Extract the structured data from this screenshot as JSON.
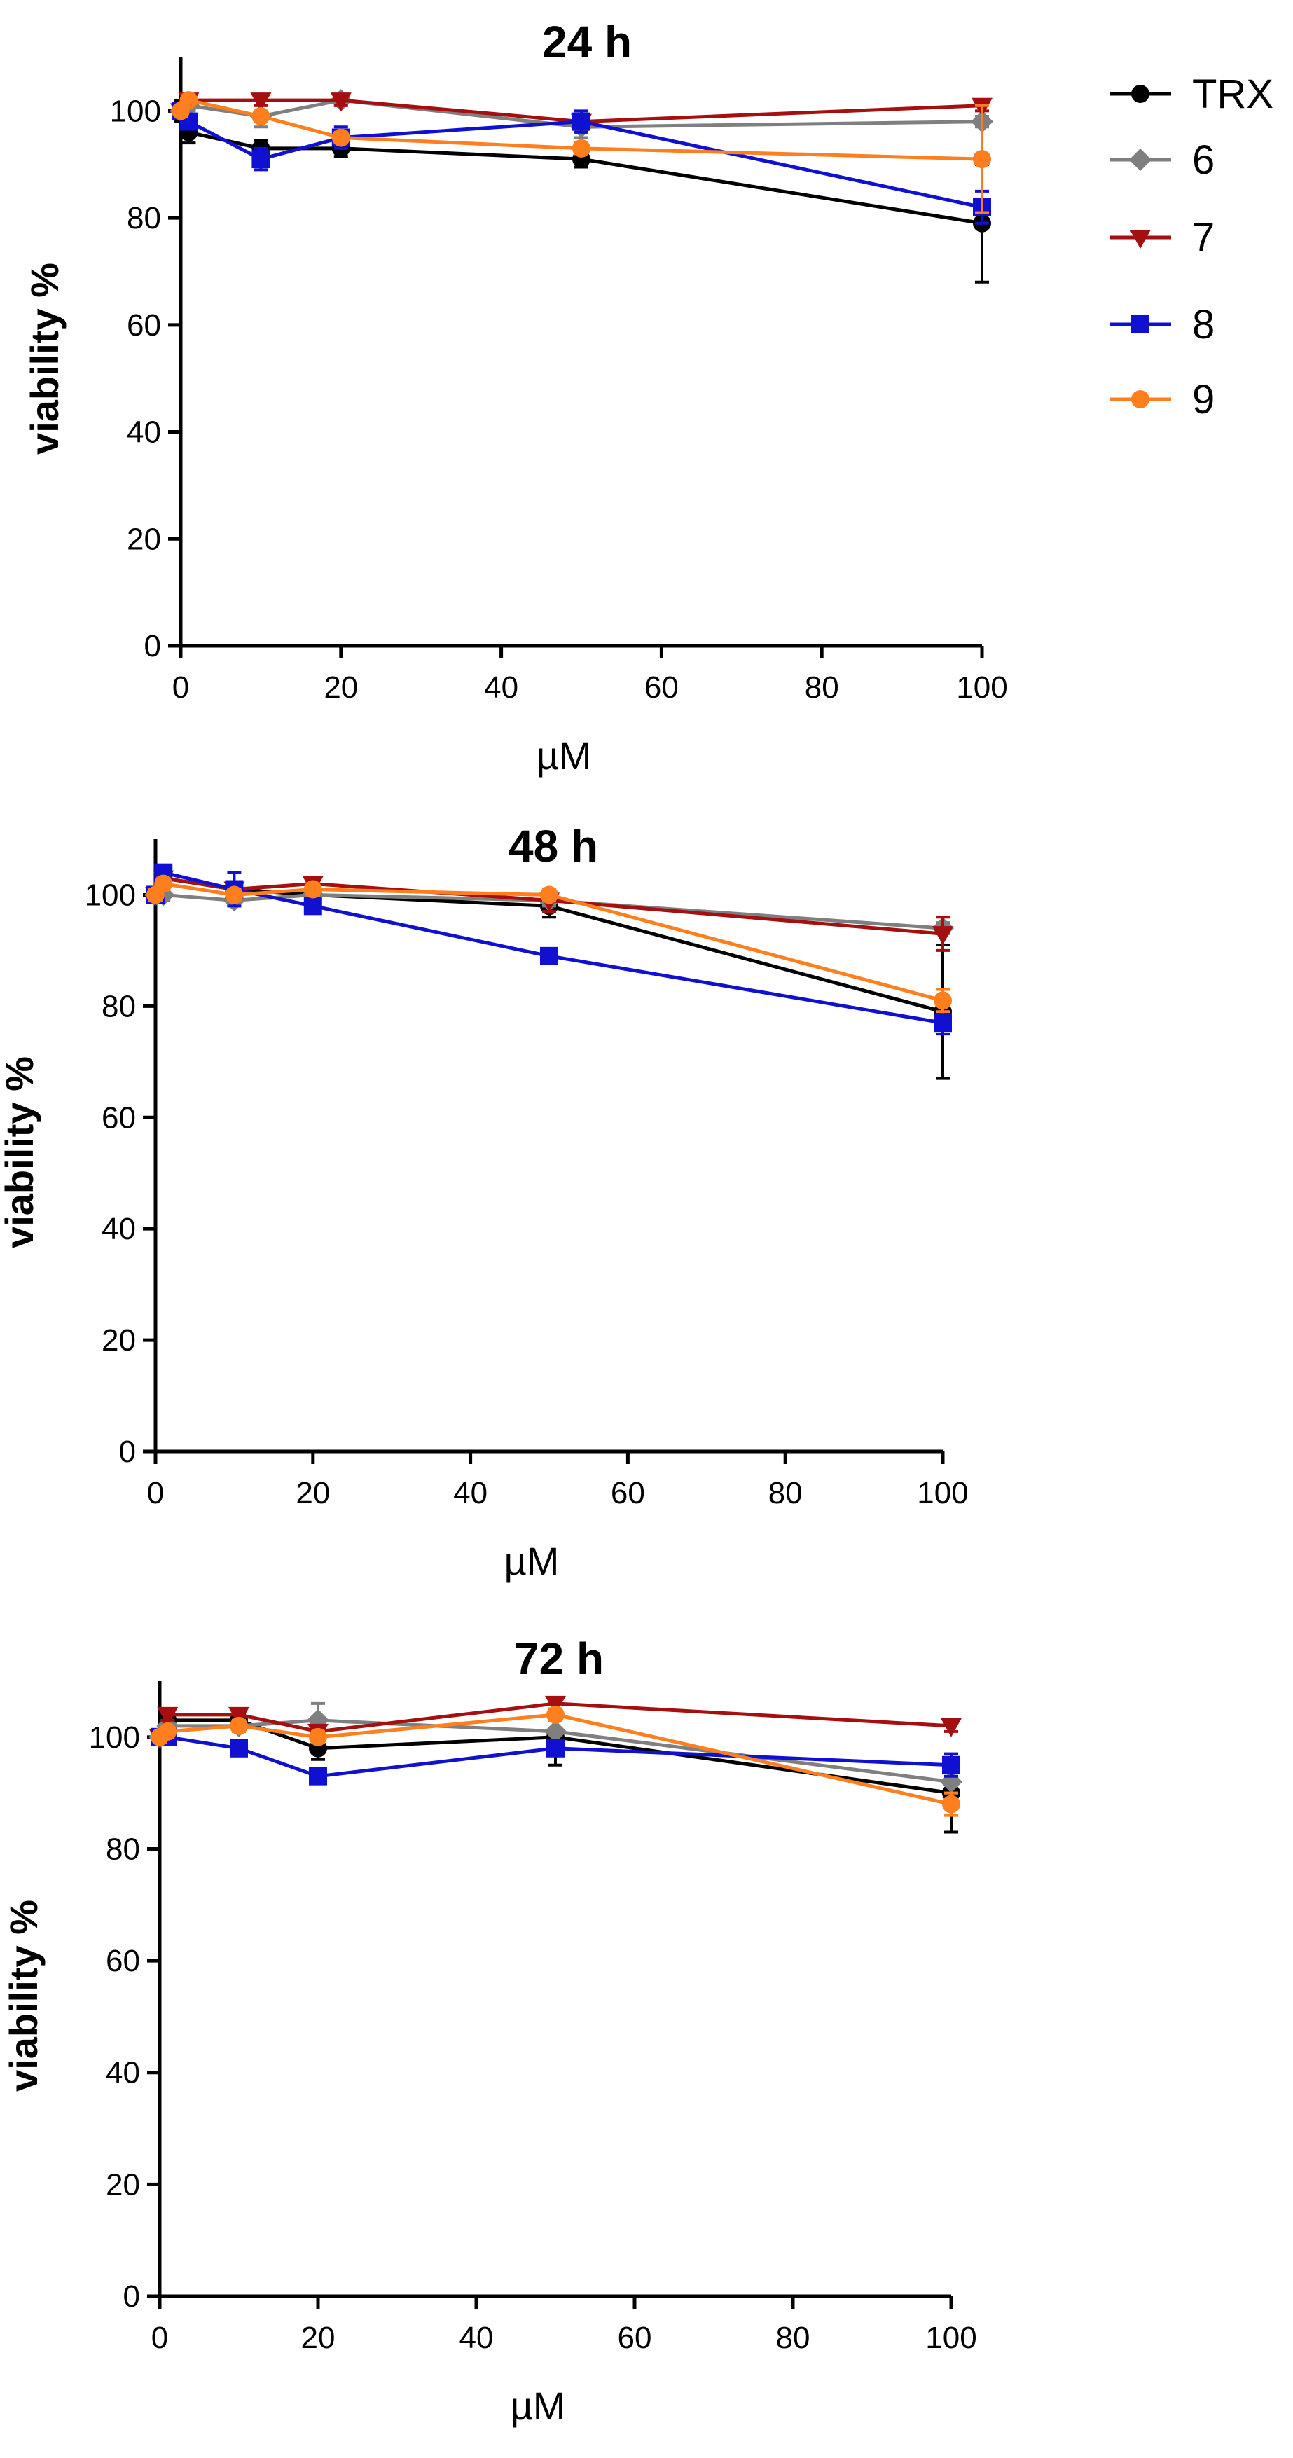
{
  "series_meta": [
    {
      "key": "TRX",
      "name": "TRX",
      "color": "#000000",
      "marker": "circle"
    },
    {
      "key": "6",
      "name": "6",
      "color": "#7f7f7f",
      "marker": "diamond"
    },
    {
      "key": "7",
      "name": "7",
      "color": "#a50f0f",
      "marker": "triangle-down"
    },
    {
      "key": "8",
      "name": "8",
      "color": "#1010d0",
      "marker": "square"
    },
    {
      "key": "9",
      "name": "9",
      "color": "#ff7f1e",
      "marker": "circle"
    }
  ],
  "chart_data": [
    {
      "type": "line",
      "title": "24 h",
      "xlabel": "µM",
      "ylabel": "viability %",
      "xlim": [
        0,
        100
      ],
      "ylim": [
        0,
        110
      ],
      "xticks": [
        0,
        20,
        40,
        60,
        80,
        100
      ],
      "yticks": [
        0,
        20,
        40,
        60,
        80,
        100
      ],
      "x": [
        0,
        1,
        10,
        20,
        50,
        100
      ],
      "series": [
        {
          "name": "TRX",
          "values": [
            100,
            96,
            93,
            93,
            91,
            79
          ],
          "errors": [
            2,
            2,
            1.5,
            1.5,
            1.5,
            11
          ]
        },
        {
          "name": "6",
          "values": [
            100,
            101,
            99,
            102,
            97,
            98
          ],
          "errors": [
            1,
            1,
            2,
            1,
            2,
            1
          ]
        },
        {
          "name": "7",
          "values": [
            100,
            102,
            102,
            102,
            98,
            101
          ],
          "errors": [
            1,
            1,
            1,
            1,
            1,
            1
          ]
        },
        {
          "name": "8",
          "values": [
            100,
            98,
            91,
            95,
            98,
            82
          ],
          "errors": [
            1,
            1,
            2,
            2,
            2,
            3
          ]
        },
        {
          "name": "9",
          "values": [
            100,
            102,
            99,
            95,
            93,
            91
          ],
          "errors": [
            1,
            1,
            1,
            1,
            1,
            10
          ]
        }
      ]
    },
    {
      "type": "line",
      "title": "48 h",
      "xlabel": "µM",
      "ylabel": "viability %",
      "xlim": [
        0,
        100
      ],
      "ylim": [
        0,
        110
      ],
      "xticks": [
        0,
        20,
        40,
        60,
        80,
        100
      ],
      "yticks": [
        0,
        20,
        40,
        60,
        80,
        100
      ],
      "x": [
        0,
        1,
        10,
        20,
        50,
        100
      ],
      "series": [
        {
          "name": "TRX",
          "values": [
            100,
            103,
            101,
            100,
            98,
            79
          ],
          "errors": [
            1,
            1,
            1,
            1,
            2,
            12
          ]
        },
        {
          "name": "6",
          "values": [
            100,
            100,
            99,
            100,
            99,
            94
          ],
          "errors": [
            1,
            1,
            1,
            1,
            1,
            1
          ]
        },
        {
          "name": "7",
          "values": [
            100,
            103,
            101,
            102,
            99,
            93
          ],
          "errors": [
            1,
            1,
            1,
            1,
            2,
            3
          ]
        },
        {
          "name": "8",
          "values": [
            100,
            104,
            101,
            98,
            89,
            77
          ],
          "errors": [
            1,
            1,
            3,
            1,
            1,
            2
          ]
        },
        {
          "name": "9",
          "values": [
            100,
            102,
            100,
            101,
            100,
            81
          ],
          "errors": [
            1,
            1,
            1,
            1,
            1,
            2
          ]
        }
      ]
    },
    {
      "type": "line",
      "title": "72 h",
      "xlabel": "µM",
      "ylabel": "viability %",
      "xlim": [
        0,
        100
      ],
      "ylim": [
        0,
        110
      ],
      "xticks": [
        0,
        20,
        40,
        60,
        80,
        100
      ],
      "yticks": [
        0,
        20,
        40,
        60,
        80,
        100
      ],
      "x": [
        0,
        1,
        10,
        20,
        50,
        100
      ],
      "series": [
        {
          "name": "TRX",
          "values": [
            100,
            103,
            103,
            98,
            100,
            90
          ],
          "errors": [
            1,
            1,
            1,
            2,
            5,
            7
          ]
        },
        {
          "name": "6",
          "values": [
            100,
            102,
            102,
            103,
            101,
            92
          ],
          "errors": [
            1,
            1,
            1,
            3,
            4,
            2
          ]
        },
        {
          "name": "7",
          "values": [
            100,
            104,
            104,
            101,
            106,
            102
          ],
          "errors": [
            1,
            1,
            1,
            1,
            1,
            1
          ]
        },
        {
          "name": "8",
          "values": [
            100,
            100,
            98,
            93,
            98,
            95
          ],
          "errors": [
            1,
            1,
            1,
            1,
            1,
            2
          ]
        },
        {
          "name": "9",
          "values": [
            100,
            101,
            102,
            100,
            104,
            88
          ],
          "errors": [
            1,
            1,
            1,
            1,
            1,
            2
          ]
        }
      ]
    }
  ]
}
